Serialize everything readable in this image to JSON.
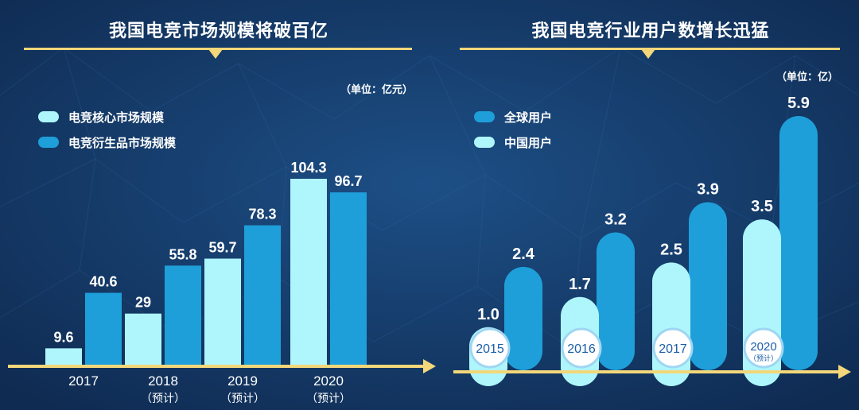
{
  "colors": {
    "light_bar": "#aef6fb",
    "dark_bar": "#1f9fd9",
    "arrow": "#f3d77a",
    "background": "#163a69"
  },
  "left_panel": {
    "title": "我国电竞市场规模将破百亿",
    "unit": "（单位：亿元）"
  },
  "right_panel": {
    "title": "我国电竞行业用户数增长迅猛",
    "unit": "（单位：亿）"
  },
  "chart_data": [
    {
      "type": "bar",
      "title": "我国电竞市场规模将破百亿",
      "unit": "（单位：亿元）",
      "categories": [
        "2017",
        "2018",
        "2019",
        "2020"
      ],
      "category_notes": [
        "",
        "（预计）",
        "（预计）",
        "（预计）"
      ],
      "series": [
        {
          "name": "电竞核心市场规模",
          "values": [
            9.6,
            29,
            59.7,
            104.3
          ],
          "labels": [
            "9.6",
            "29",
            "59.7",
            "104.3"
          ],
          "color": "#aef6fb"
        },
        {
          "name": "电竞衍生品市场规模",
          "values": [
            40.6,
            55.8,
            78.3,
            96.7
          ],
          "labels": [
            "40.6",
            "55.8",
            "78.3",
            "96.7"
          ],
          "color": "#1f9fd9"
        }
      ],
      "ylim": [
        0,
        110
      ],
      "grid": false,
      "legend": "top-left"
    },
    {
      "type": "bar",
      "title": "我国电竞行业用户数增长迅猛",
      "unit": "（单位：亿）",
      "categories": [
        "2015",
        "2016",
        "2017",
        "2020"
      ],
      "category_notes": [
        "",
        "",
        "",
        "（预计）"
      ],
      "series": [
        {
          "name": "全球用户",
          "values": [
            2.4,
            3.2,
            3.9,
            5.9
          ],
          "labels": [
            "2.4",
            "3.2",
            "3.9",
            "5.9"
          ],
          "color": "#1f9fd9"
        },
        {
          "name": "中国用户",
          "values": [
            1.0,
            1.7,
            2.5,
            3.5
          ],
          "labels": [
            "1.0",
            "1.7",
            "2.5",
            "3.5"
          ],
          "color": "#aef6fb"
        }
      ],
      "ylim": [
        0,
        6.4
      ],
      "grid": false,
      "legend": "top-left"
    }
  ]
}
